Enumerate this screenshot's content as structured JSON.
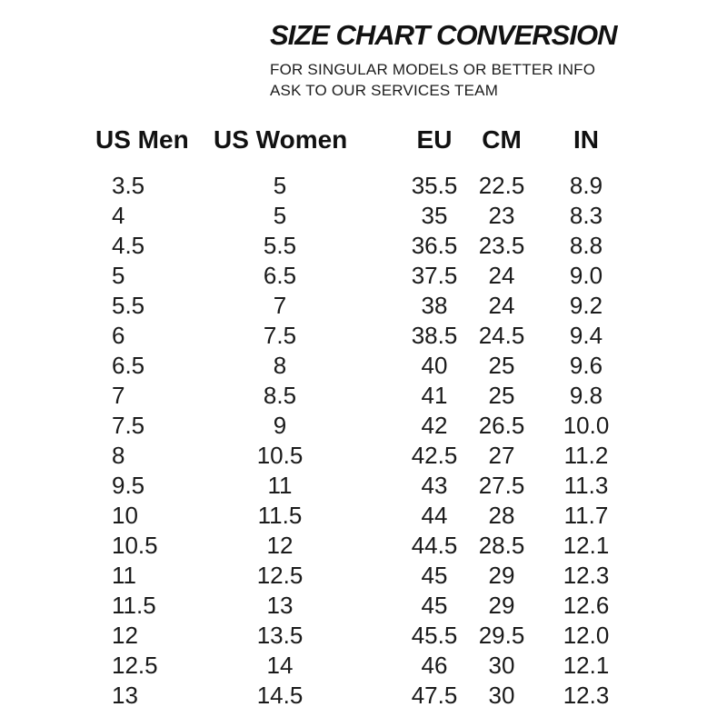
{
  "page": {
    "background_color": "#ffffff",
    "text_color": "#161616"
  },
  "header": {
    "title": "SIZE CHART CONVERSION",
    "subtitle_line1": "FOR SINGULAR MODELS OR BETTER INFO",
    "subtitle_line2": "ASK TO OUR SERVICES TEAM"
  },
  "chart_data": {
    "type": "table",
    "title": "SIZE CHART CONVERSION",
    "columns": [
      "US Men",
      "US Women",
      "EU",
      "CM",
      "IN"
    ],
    "rows": [
      [
        "3.5",
        "5",
        "35.5",
        "22.5",
        "8.9"
      ],
      [
        "4",
        "5",
        "35",
        "23",
        "8.3"
      ],
      [
        "4.5",
        "5.5",
        "36.5",
        "23.5",
        "8.8"
      ],
      [
        "5",
        "6.5",
        "37.5",
        "24",
        "9.0"
      ],
      [
        "5.5",
        "7",
        "38",
        "24",
        "9.2"
      ],
      [
        "6",
        "7.5",
        "38.5",
        "24.5",
        "9.4"
      ],
      [
        "6.5",
        "8",
        "40",
        "25",
        "9.6"
      ],
      [
        "7",
        "8.5",
        "41",
        "25",
        "9.8"
      ],
      [
        "7.5",
        "9",
        "42",
        "26.5",
        "10.0"
      ],
      [
        "8",
        "10.5",
        "42.5",
        "27",
        "11.2"
      ],
      [
        "9.5",
        "11",
        "43",
        "27.5",
        "11.3"
      ],
      [
        "10",
        "11.5",
        "44",
        "28",
        "11.7"
      ],
      [
        "10.5",
        "12",
        "44.5",
        "28.5",
        "12.1"
      ],
      [
        "11",
        "12.5",
        "45",
        "29",
        "12.3"
      ],
      [
        "11.5",
        "13",
        "45",
        "29",
        "12.6"
      ],
      [
        "12",
        "13.5",
        "45.5",
        "29.5",
        "12.0"
      ],
      [
        "12.5",
        "14",
        "46",
        "30",
        "12.1"
      ],
      [
        "13",
        "14.5",
        "47.5",
        "30",
        "12.3"
      ]
    ]
  }
}
